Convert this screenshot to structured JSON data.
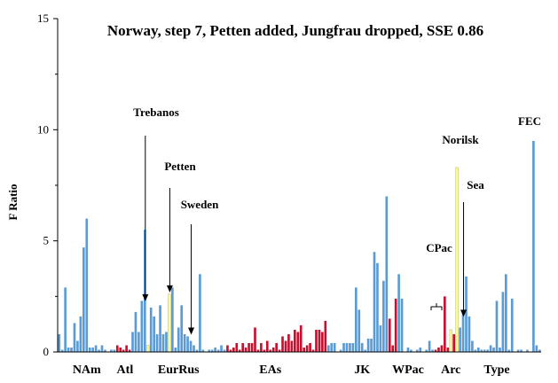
{
  "chart_data": {
    "type": "bar",
    "title": "Norway, step 7, Petten added, Jungfrau dropped, SSE 0.86",
    "ylabel": "F Ratio",
    "xlabel": "",
    "ylim": [
      0,
      15
    ],
    "yticks": [
      "0",
      "5",
      "10",
      "15"
    ],
    "grid": false,
    "colors": {
      "blue": "#5b9bd5",
      "red": "#c8102e",
      "yellow": "#ffff99"
    },
    "values": [
      0.8,
      0.1,
      2.9,
      0.2,
      0.2,
      1.3,
      0.5,
      1.6,
      4.7,
      6.0,
      0.2,
      0.2,
      0.3,
      0.1,
      0.3,
      0.1,
      0.0,
      0.1,
      0.1,
      0.3,
      0.2,
      0.1,
      0.3,
      0.1,
      0.9,
      1.8,
      0.9,
      2.3,
      5.5,
      0.3,
      2.0,
      1.6,
      0.8,
      2.1,
      0.8,
      0.9,
      2.6,
      2.9,
      0.2,
      1.1,
      2.1,
      0.8,
      0.7,
      0.5,
      0.3,
      0.1,
      3.5,
      0.1,
      0.0,
      0.1,
      0.1,
      0.2,
      0.1,
      0.3,
      0.1,
      0.3,
      0.1,
      0.2,
      0.4,
      0.1,
      0.4,
      0.2,
      0.4,
      0.4,
      1.1,
      0.1,
      0.4,
      0.1,
      0.5,
      0.1,
      0.2,
      0.4,
      0.1,
      0.7,
      0.5,
      0.8,
      0.5,
      1.0,
      0.9,
      1.2,
      0.2,
      0.3,
      0.4,
      0.1,
      1.0,
      1.0,
      0.9,
      1.4,
      0.3,
      0.4,
      0.4,
      0.0,
      0.1,
      0.4,
      0.4,
      0.4,
      0.4,
      2.9,
      1.9,
      0.4,
      0.1,
      0.6,
      0.6,
      4.5,
      4.0,
      1.2,
      3.2,
      7.0,
      1.5,
      0.3,
      2.4,
      3.5,
      2.4,
      0.0,
      0.2,
      0.1,
      0.0,
      0.1,
      0.2,
      0.0,
      0.1,
      0.5,
      0.1,
      0.1,
      0.2,
      0.3,
      2.5,
      0.2,
      1.0,
      0.8,
      8.3,
      1.1,
      1.8,
      3.4,
      1.6,
      0.5,
      0.1,
      0.2,
      0.1,
      0.1,
      0.1,
      0.3,
      0.2,
      2.3,
      0.2,
      2.7,
      3.5,
      0.1,
      2.4,
      0.0,
      0.1,
      0.1,
      0.0,
      0.1,
      0.0,
      9.5,
      0.3,
      0.1
    ],
    "bar_colors": [
      "blue",
      "blue",
      "blue",
      "blue",
      "blue",
      "blue",
      "blue",
      "blue",
      "blue",
      "blue",
      "blue",
      "blue",
      "blue",
      "blue",
      "blue",
      "blue",
      "blue",
      "blue",
      "blue",
      "red",
      "red",
      "red",
      "red",
      "red",
      "blue",
      "blue",
      "blue",
      "blue",
      "blue",
      "yellow",
      "blue",
      "blue",
      "blue",
      "blue",
      "blue",
      "blue",
      "yellow",
      "blue",
      "blue",
      "blue",
      "blue",
      "blue",
      "blue",
      "blue",
      "blue",
      "blue",
      "blue",
      "blue",
      "blue",
      "blue",
      "blue",
      "blue",
      "blue",
      "blue",
      "blue",
      "red",
      "red",
      "red",
      "red",
      "red",
      "red",
      "red",
      "red",
      "red",
      "red",
      "red",
      "red",
      "red",
      "red",
      "red",
      "red",
      "red",
      "red",
      "red",
      "red",
      "red",
      "red",
      "red",
      "red",
      "red",
      "red",
      "red",
      "red",
      "red",
      "red",
      "red",
      "red",
      "red",
      "blue",
      "blue",
      "blue",
      "blue",
      "blue",
      "blue",
      "blue",
      "blue",
      "blue",
      "blue",
      "blue",
      "blue",
      "blue",
      "blue",
      "blue",
      "blue",
      "blue",
      "blue",
      "blue",
      "blue",
      "red",
      "red",
      "red",
      "blue",
      "blue",
      "blue",
      "blue",
      "blue",
      "blue",
      "blue",
      "blue",
      "blue",
      "blue",
      "blue",
      "blue",
      "red",
      "red",
      "red",
      "red",
      "red",
      "yellow",
      "red",
      "yellow",
      "blue",
      "blue",
      "blue",
      "blue",
      "blue",
      "blue",
      "blue",
      "blue",
      "blue",
      "blue",
      "blue",
      "blue",
      "blue",
      "blue",
      "blue",
      "blue",
      "blue",
      "blue",
      "blue",
      "blue",
      "blue",
      "blue",
      "blue",
      "yellow",
      "blue",
      "blue"
    ],
    "category_groups": [
      {
        "label": "NAm",
        "at": 9
      },
      {
        "label": "Atl",
        "at": 21.5
      },
      {
        "label": "EurRus",
        "at": 39
      },
      {
        "label": "EAs",
        "at": 69
      },
      {
        "label": "JK",
        "at": 99
      },
      {
        "label": "WPac",
        "at": 114
      },
      {
        "label": "Arc",
        "at": 128
      },
      {
        "label": "Type",
        "at": 143
      }
    ],
    "annotations": [
      {
        "label": "Trebanos",
        "bar": 28,
        "to": 2.2
      },
      {
        "label": "Petten",
        "bar": 36,
        "to": 2.6
      },
      {
        "label": "Sweden",
        "bar": 43,
        "to": 0.7
      },
      {
        "label": "Norilsk",
        "bar": 130,
        "to": null
      },
      {
        "label": "Sea",
        "bar": 132,
        "to": 1.5
      },
      {
        "label": "CPac",
        "bar": 119,
        "to": null
      },
      {
        "label": "FEC",
        "bar": 150,
        "to": null
      }
    ]
  }
}
